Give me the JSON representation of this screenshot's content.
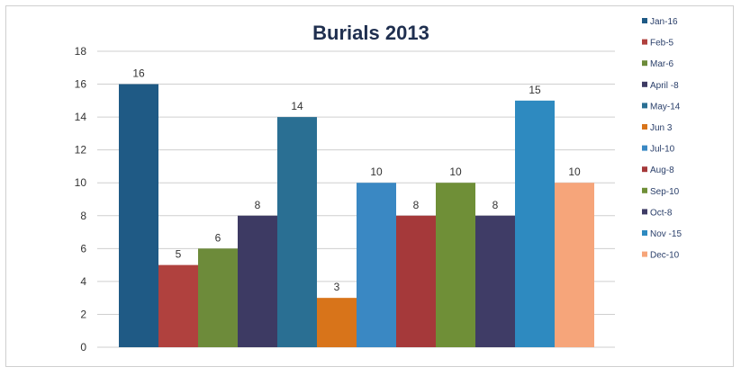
{
  "chart_data": {
    "type": "bar",
    "title": "Burials 2013",
    "xlabel": "",
    "ylabel": "",
    "ylim": [
      0,
      18
    ],
    "yticks": [
      0,
      2,
      4,
      6,
      8,
      10,
      12,
      14,
      16,
      18
    ],
    "grid": true,
    "legend_position": "right",
    "series": [
      {
        "name": "Jan-16",
        "value": 16,
        "color": "#1f5a85"
      },
      {
        "name": "Feb-5",
        "value": 5,
        "color": "#b0413e"
      },
      {
        "name": "Mar-6",
        "value": 6,
        "color": "#6d8b3a"
      },
      {
        "name": "April -8",
        "value": 8,
        "color": "#3d3a63"
      },
      {
        "name": "May-14",
        "value": 14,
        "color": "#2a6f93"
      },
      {
        "name": "Jun 3",
        "value": 3,
        "color": "#d8741a"
      },
      {
        "name": "Jul-10",
        "value": 10,
        "color": "#3a88c3"
      },
      {
        "name": "Aug-8",
        "value": 8,
        "color": "#a5393a"
      },
      {
        "name": "Sep-10",
        "value": 10,
        "color": "#6f8f37"
      },
      {
        "name": "Oct-8",
        "value": 8,
        "color": "#3f3c66"
      },
      {
        "name": "Nov -15",
        "value": 15,
        "color": "#2e8ac0"
      },
      {
        "name": "Dec-10",
        "value": 10,
        "color": "#f6a57a"
      }
    ]
  }
}
